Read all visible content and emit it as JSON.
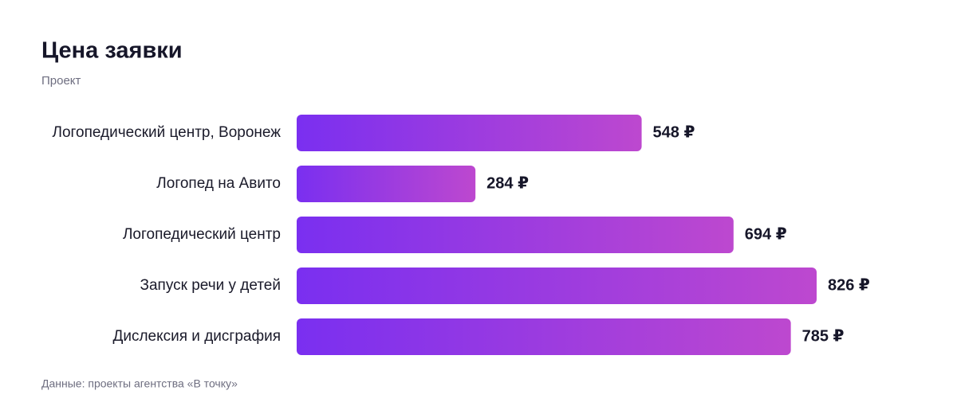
{
  "chart_data": {
    "type": "bar",
    "orientation": "horizontal",
    "title": "Цена заявки",
    "subtitle": "Проект",
    "categories": [
      "Логопедический центр, Воронеж",
      "Логопед на Авито",
      "Логопедический центр",
      "Запуск речи у детей",
      "Дислексия и дисграфия"
    ],
    "values": [
      548,
      284,
      694,
      826,
      785
    ],
    "value_labels": [
      "548 ₽",
      "284 ₽",
      "694 ₽",
      "826 ₽",
      "785 ₽"
    ],
    "colors": [
      "#7a2ff0",
      "#bd48cf"
    ],
    "source": "Данные: проекты агентства «В точку»"
  }
}
